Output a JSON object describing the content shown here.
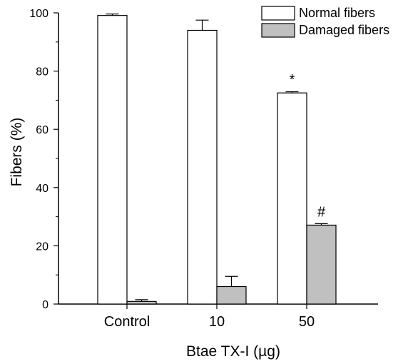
{
  "chart_data": {
    "type": "bar",
    "categories": [
      "Control",
      "10",
      "50"
    ],
    "series": [
      {
        "name": "Normal fibers",
        "color": "#ffffff",
        "values": [
          99.1,
          94.0,
          72.5
        ],
        "errors": [
          0.5,
          3.5,
          0.4
        ]
      },
      {
        "name": "Damaged fibers",
        "color": "#c0c0c0",
        "values": [
          0.9,
          6.0,
          27.1
        ],
        "errors": [
          0.6,
          3.5,
          0.5
        ]
      }
    ],
    "annotations": [
      {
        "category": "50",
        "series": "Normal fibers",
        "text": "*"
      },
      {
        "category": "50",
        "series": "Damaged fibers",
        "text": "#"
      }
    ],
    "xlabel": "Btae TX-I (µg)",
    "ylabel": "Fibers (%)",
    "ylim": [
      0,
      100
    ],
    "yticks": [
      0,
      20,
      40,
      60,
      80,
      100
    ],
    "grid": false,
    "legend_position": "top-right"
  }
}
